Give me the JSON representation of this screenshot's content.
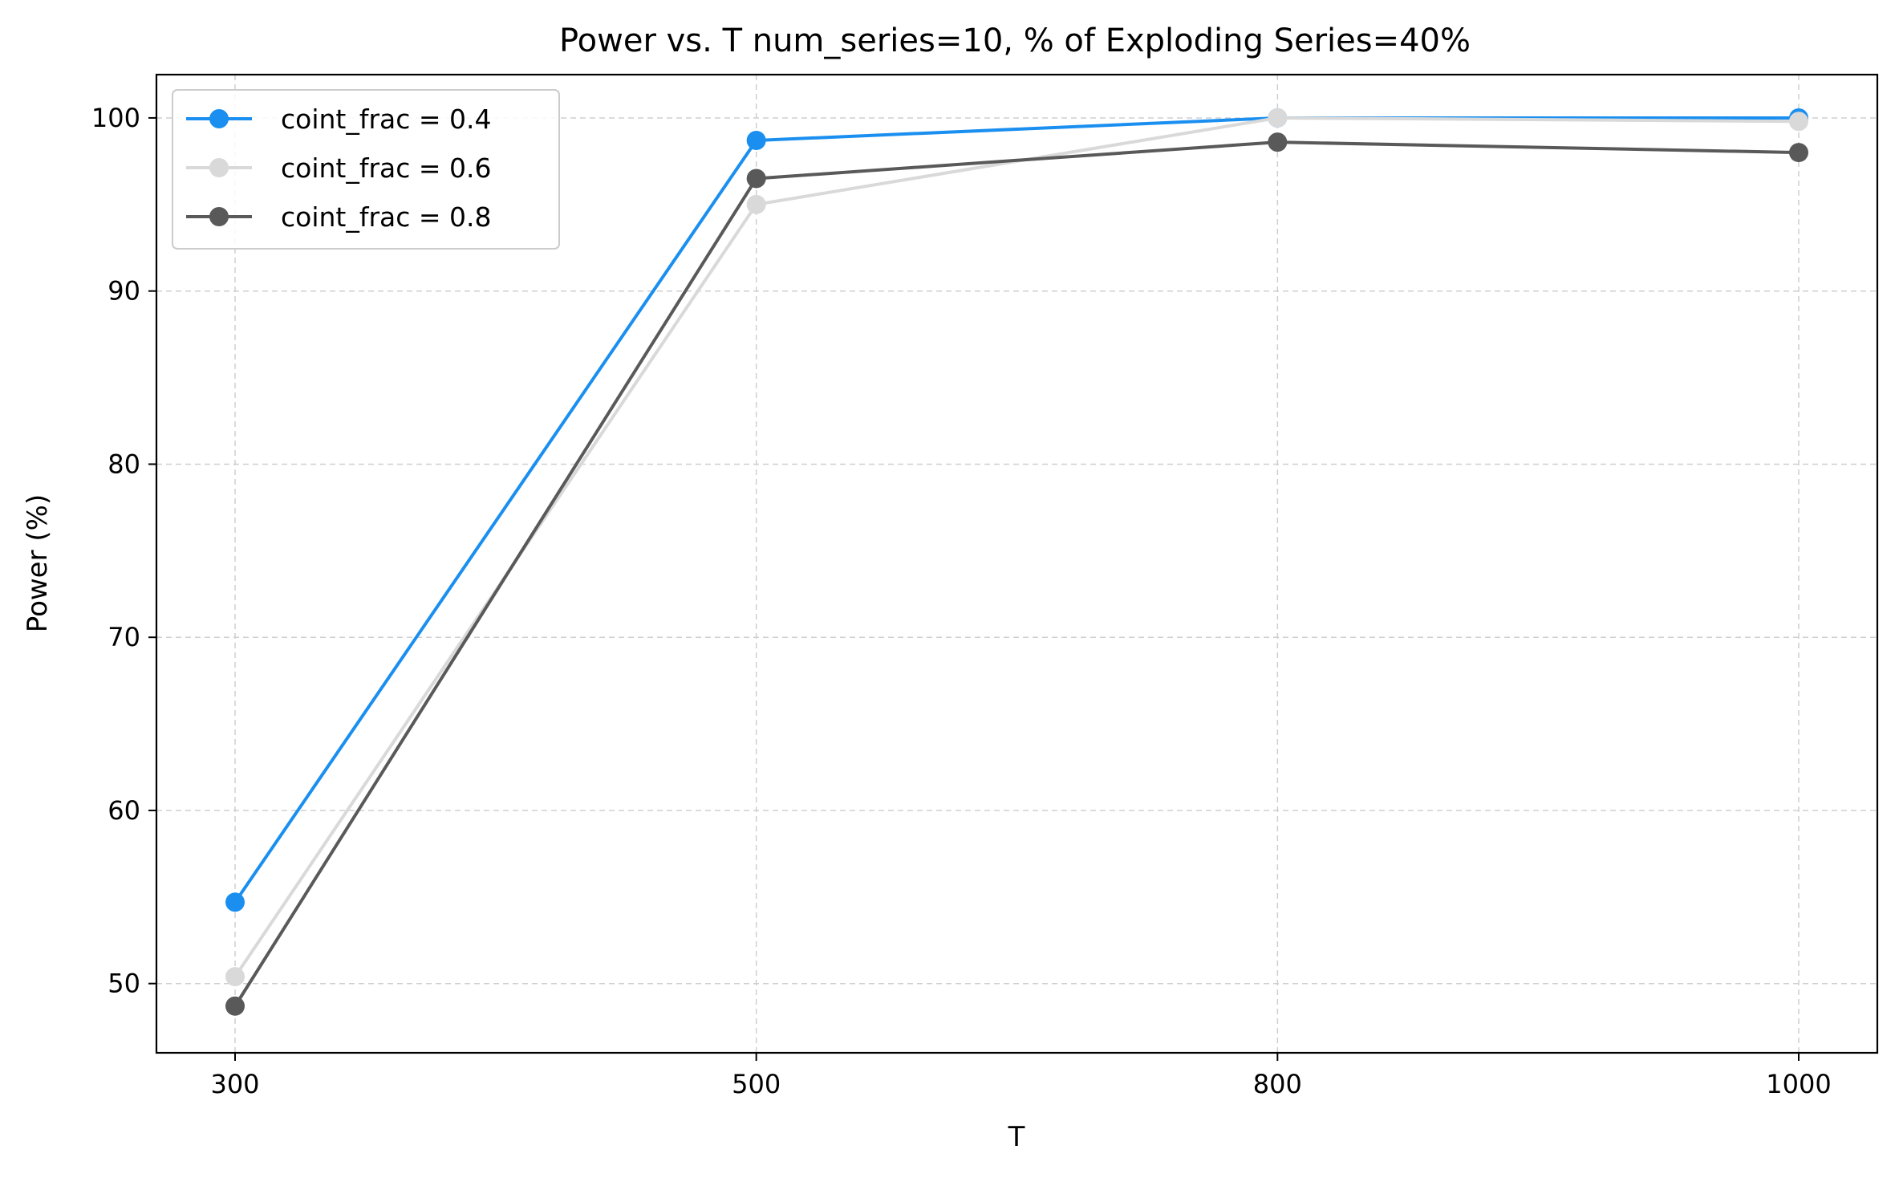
{
  "chart_data": {
    "type": "line",
    "title": "Power vs. T  num_series=10, % of Exploding Series=40%",
    "xlabel": "T",
    "ylabel": "Power (%)",
    "categories": [
      "300",
      "500",
      "800",
      "1000"
    ],
    "yticks": [
      "50",
      "60",
      "70",
      "80",
      "90",
      "100"
    ],
    "ylim": [
      46,
      102.5
    ],
    "grid": true,
    "legend_position": "top-left",
    "series": [
      {
        "name": "coint_frac = 0.4",
        "color": "#1a8ff0",
        "values": [
          54.7,
          98.7,
          100.0,
          100.0
        ]
      },
      {
        "name": "coint_frac = 0.6",
        "color": "#d9d9d9",
        "values": [
          50.4,
          95.0,
          100.0,
          99.8
        ]
      },
      {
        "name": "coint_frac = 0.8",
        "color": "#595959",
        "values": [
          48.7,
          96.5,
          98.6,
          98.0
        ]
      }
    ]
  }
}
